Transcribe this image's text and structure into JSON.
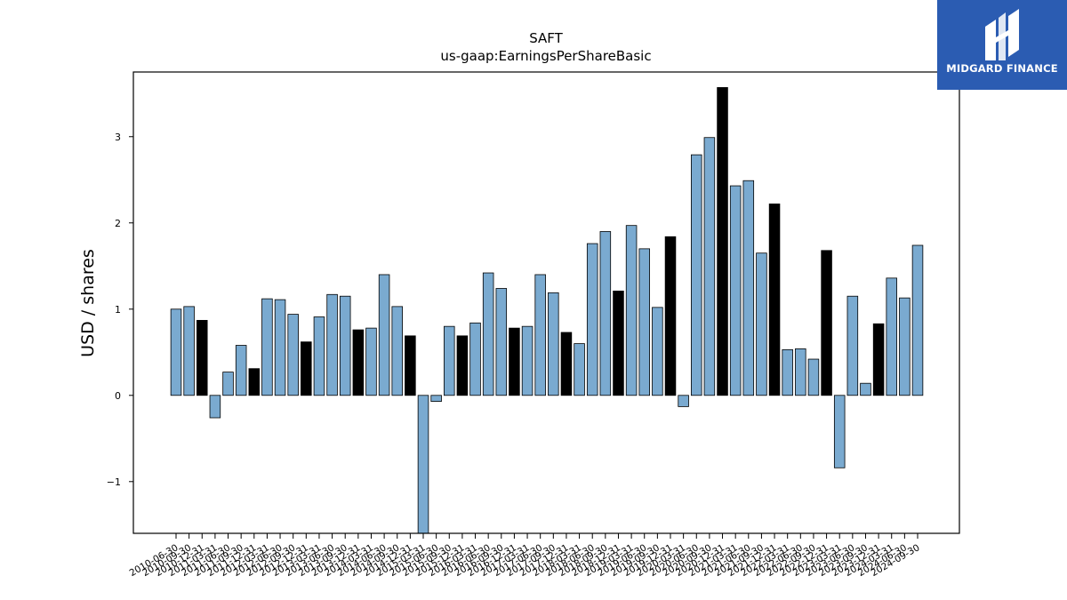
{
  "chart_data": {
    "type": "bar",
    "title": "SAFT",
    "subtitle": "us-gaap:EarningsPerShareBasic",
    "xlabel": "",
    "ylabel": "USD / shares",
    "ylim": [
      -1.6,
      3.75
    ],
    "yticks": [
      -1,
      0,
      1,
      2,
      3
    ],
    "grid": false,
    "colors": {
      "quarter": "#7aaad0",
      "annual": "#000000",
      "edge": "#000000"
    },
    "categories": [
      "2010-06-30",
      "2010-09-30",
      "2010-12-31",
      "2011-03-31",
      "2011-06-30",
      "2011-09-30",
      "2011-12-31",
      "2012-03-31",
      "2012-06-30",
      "2012-09-30",
      "2012-12-31",
      "2013-03-31",
      "2013-06-30",
      "2013-09-30",
      "2013-12-31",
      "2014-03-31",
      "2014-06-30",
      "2014-09-30",
      "2014-12-31",
      "2015-03-31",
      "2015-06-30",
      "2015-09-30",
      "2015-12-31",
      "2016-03-31",
      "2016-06-30",
      "2016-09-30",
      "2016-12-31",
      "2017-03-31",
      "2017-06-30",
      "2017-09-30",
      "2017-12-31",
      "2018-03-31",
      "2018-06-30",
      "2018-09-30",
      "2018-12-31",
      "2019-03-31",
      "2019-06-30",
      "2019-09-30",
      "2019-12-31",
      "2020-03-31",
      "2020-06-30",
      "2020-09-30",
      "2020-12-31",
      "2021-03-31",
      "2021-06-30",
      "2021-09-30",
      "2021-12-31",
      "2022-03-31",
      "2022-06-30",
      "2022-09-30",
      "2022-12-31",
      "2023-03-31",
      "2023-06-30",
      "2023-09-30",
      "2023-12-31",
      "2024-03-31",
      "2024-06-30",
      "2024-09-30"
    ],
    "values": [
      1.0,
      1.03,
      0.87,
      -0.26,
      0.27,
      0.58,
      0.31,
      1.12,
      1.11,
      0.94,
      0.62,
      0.91,
      1.17,
      1.15,
      0.76,
      0.78,
      1.4,
      1.03,
      0.69,
      -1.7,
      -0.07,
      0.8,
      0.69,
      0.84,
      1.42,
      1.24,
      0.78,
      0.8,
      1.4,
      1.19,
      0.73,
      0.6,
      1.76,
      1.9,
      1.21,
      1.97,
      1.7,
      1.02,
      1.84,
      -0.13,
      2.79,
      2.99,
      3.57,
      2.43,
      2.49,
      1.65,
      2.22,
      0.53,
      0.54,
      0.42,
      1.68,
      -0.84,
      1.15,
      0.14,
      0.83,
      1.36,
      1.13,
      1.74
    ],
    "annual_flags": [
      0,
      0,
      1,
      0,
      0,
      0,
      1,
      0,
      0,
      0,
      1,
      0,
      0,
      0,
      1,
      0,
      0,
      0,
      1,
      0,
      0,
      0,
      1,
      0,
      0,
      0,
      1,
      0,
      0,
      0,
      1,
      0,
      0,
      0,
      1,
      0,
      0,
      0,
      1,
      0,
      0,
      0,
      1,
      0,
      0,
      0,
      1,
      0,
      0,
      0,
      1,
      0,
      0,
      0,
      1,
      0,
      0,
      0
    ]
  },
  "watermark": {
    "brand": "MIDGARD FINANCE",
    "background": "#2b5cb2"
  }
}
